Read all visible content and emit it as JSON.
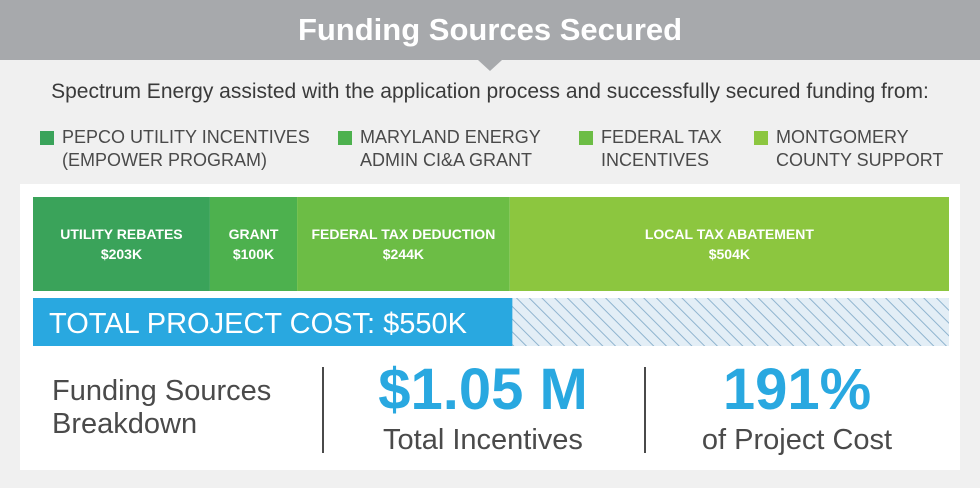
{
  "banner": {
    "title": "Funding Sources Secured"
  },
  "subtitle": "Spectrum Energy assisted with the application process and successfully secured funding from:",
  "legend": [
    {
      "label": "PEPCO UTILITY INCENTIVES\n(EMPOWER PROGRAM)",
      "color": "#3aa35a"
    },
    {
      "label": "MARYLAND ENERGY\nADMIN CI&A GRANT",
      "color": "#4db14e"
    },
    {
      "label": "FEDERAL TAX\nINCENTIVES",
      "color": "#6cbd45"
    },
    {
      "label": "MONTGOMERY\nCOUNTY SUPPORT",
      "color": "#8cc63f"
    }
  ],
  "chart_data": {
    "type": "bar",
    "orientation": "horizontal-stacked",
    "series": [
      {
        "name": "UTILITY REBATES",
        "value_label": "$203K",
        "value": 203,
        "color": "#3aa35a"
      },
      {
        "name": "GRANT",
        "value_label": "$100K",
        "value": 100,
        "color": "#4db14e"
      },
      {
        "name": "FEDERAL TAX DEDUCTION",
        "value_label": "$244K",
        "value": 244,
        "color": "#6cbd45"
      },
      {
        "name": "LOCAL TAX ABATEMENT",
        "value_label": "$504K",
        "value": 504,
        "color": "#8cc63f"
      }
    ],
    "total": {
      "label": "TOTAL PROJECT COST: $550K",
      "value": 550,
      "color": "#29a8e0",
      "pattern_color": "#b8d4e6"
    },
    "legend_position": "top",
    "grid": false
  },
  "summary": {
    "label": "Funding Sources\nBreakdown",
    "stats": [
      {
        "value": "$1.05 M",
        "label": "Total Incentives"
      },
      {
        "value": "191%",
        "label": "of Project Cost"
      }
    ]
  }
}
